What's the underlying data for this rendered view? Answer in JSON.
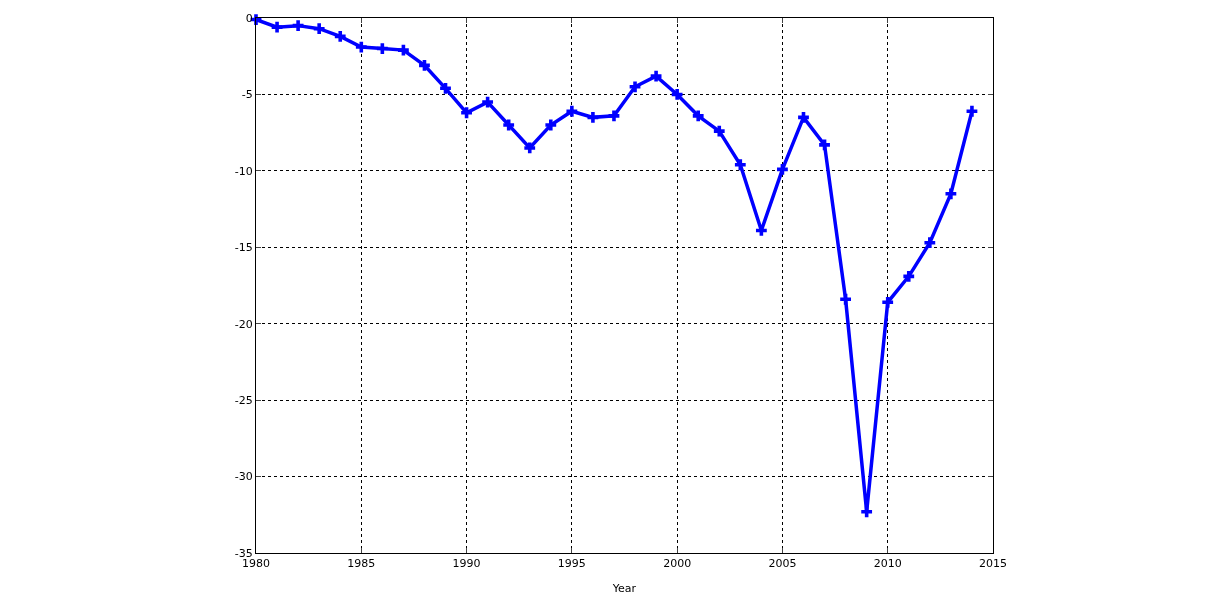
{
  "chart_data": {
    "type": "line",
    "xlabel": "Year",
    "x": [
      1980,
      1981,
      1982,
      1983,
      1984,
      1985,
      1986,
      1987,
      1988,
      1989,
      1990,
      1991,
      1992,
      1993,
      1994,
      1995,
      1996,
      1997,
      1998,
      1999,
      2000,
      2001,
      2002,
      2003,
      2004,
      2005,
      2006,
      2007,
      2008,
      2009,
      2010,
      2011,
      2012,
      2013,
      2014
    ],
    "series": [
      {
        "color": "#0000ff",
        "values": [
          -0.1,
          -0.6,
          -0.5,
          -0.7,
          -1.2,
          -1.9,
          -2.0,
          -2.1,
          -3.1,
          -4.6,
          -6.2,
          -5.5,
          -7.0,
          -8.5,
          -7.0,
          -6.1,
          -6.5,
          -6.4,
          -4.5,
          -3.8,
          -5.0,
          -6.4,
          -7.4,
          -9.6,
          -13.9,
          -9.9,
          -6.5,
          -8.3,
          -18.4,
          -32.3,
          -18.6,
          -16.9,
          -14.7,
          -11.5,
          -6.1
        ]
      }
    ],
    "xlim": [
      1980,
      2015
    ],
    "xticks": [
      1980,
      1985,
      1990,
      1995,
      2000,
      2005,
      2010,
      2015
    ],
    "ylim": [
      -35,
      0
    ],
    "yticks": [
      -35,
      -30,
      -25,
      -20,
      -15,
      -10,
      -5,
      0
    ],
    "grid": true,
    "marker": "cross",
    "line_style": "solid",
    "legend": false
  }
}
